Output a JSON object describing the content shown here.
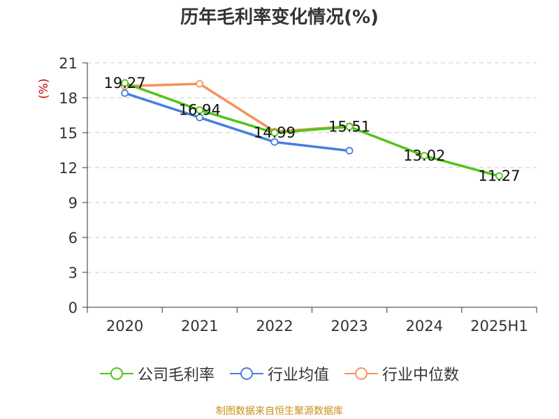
{
  "chart_data": {
    "type": "line",
    "title": "历年毛利率变化情况(%)",
    "ylabel": "(%)",
    "xlabel": "",
    "categories": [
      "2020",
      "2021",
      "2022",
      "2023",
      "2024",
      "2025H1"
    ],
    "ylim": [
      0,
      21
    ],
    "yticks": [
      0,
      3,
      6,
      9,
      12,
      15,
      18,
      21
    ],
    "grid": true,
    "legend_position": "bottom",
    "series": [
      {
        "name": "公司毛利率",
        "color": "#52c41a",
        "values": [
          19.27,
          16.94,
          14.99,
          15.51,
          13.02,
          11.27
        ],
        "labels": [
          "19.27",
          "16.94",
          "14.99",
          "15.51",
          "13.02",
          "11.27"
        ]
      },
      {
        "name": "行业均值",
        "color": "#4a7fdc",
        "values": [
          18.4,
          16.3,
          14.2,
          13.45,
          null,
          null
        ],
        "labels": []
      },
      {
        "name": "行业中位数",
        "color": "#f4935c",
        "values": [
          19.0,
          19.2,
          15.1,
          15.55,
          null,
          null
        ],
        "labels": []
      }
    ]
  },
  "source": "制图数据来自恒生聚源数据库",
  "colors": {
    "axis": "#333333",
    "grid": "#c8c8c8",
    "ylabel": "#cc0000",
    "source": "#c8901a",
    "title": "#333333"
  }
}
